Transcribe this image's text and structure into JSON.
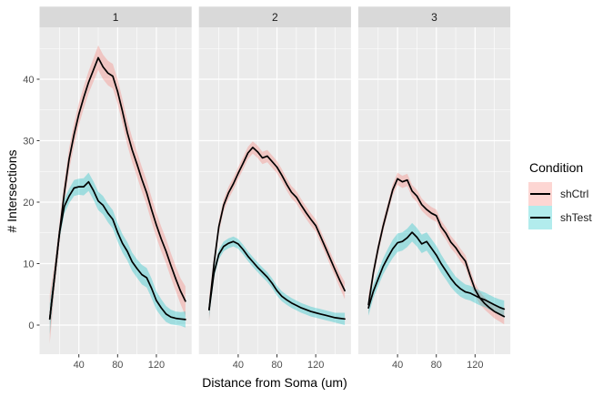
{
  "figure": {
    "bg": "#FFFFFF",
    "panel_bg": "#EBEBEB",
    "strip_bg": "#D9D9D9",
    "strip_text_color": "#1A1A1A",
    "grid_color": "#FFFFFF",
    "tick_mark_color": "#333333",
    "tick_label_color": "#4D4D4D",
    "axis_title_color": "#000000",
    "line_color": "#000000"
  },
  "chart_data": {
    "type": "line",
    "title": "",
    "xlabel": "Distance from Soma (um)",
    "ylabel": "# Intersections",
    "x_ticks": [
      40,
      80,
      120
    ],
    "x_minor_ticks": [
      20,
      60,
      100,
      140
    ],
    "y_ticks": [
      0,
      10,
      20,
      30,
      40
    ],
    "y_minor_ticks": [
      5,
      15,
      25,
      35,
      45
    ],
    "xlim": [
      -0.5,
      157.5
    ],
    "ylim": [
      -4.7,
      48.3
    ],
    "grid": true,
    "ribbon": "mean ± SEM",
    "legend": {
      "title": "Condition",
      "position": "right",
      "entries": [
        {
          "label": "shCtrl",
          "color": "#F8766D"
        },
        {
          "label": "shTest",
          "color": "#00BFC4"
        }
      ]
    },
    "x": [
      10,
      15,
      20,
      25,
      30,
      35,
      40,
      45,
      50,
      55,
      60,
      65,
      70,
      75,
      80,
      85,
      90,
      95,
      100,
      105,
      110,
      115,
      120,
      125,
      130,
      135,
      140,
      145,
      150
    ],
    "facets": [
      {
        "label": "1",
        "series": [
          {
            "name": "shCtrl",
            "color": "#F8766D",
            "values": [
              1,
              8,
              15,
              21.5,
              27,
              31,
              34.3,
              37,
              39.5,
              41.5,
              43.5,
              42,
              41,
              40.5,
              38,
              34.8,
              31.3,
              28.5,
              26.2,
              23.7,
              21.5,
              18.8,
              16.3,
              14,
              12,
              9.7,
              7.5,
              5.5,
              3.9
            ],
            "se": [
              4,
              2,
              1.8,
              1.8,
              1.8,
              1.8,
              1.8,
              1.8,
              1.8,
              1.9,
              2,
              2,
              2,
              2,
              2,
              2,
              2,
              2,
              2,
              2,
              2,
              2,
              2,
              2,
              2,
              2,
              2,
              2.1,
              2.4
            ]
          },
          {
            "name": "shTest",
            "color": "#00BFC4",
            "values": [
              1,
              8,
              15,
              19.3,
              21,
              22.3,
              22.5,
              22.5,
              23.3,
              21.9,
              20.2,
              19.5,
              18.2,
              17.2,
              15.1,
              13.3,
              12,
              10.3,
              9.2,
              8.2,
              7.7,
              6,
              4,
              2.8,
              1.8,
              1.3,
              1.1,
              1,
              0.9
            ],
            "se": [
              2.5,
              1.3,
              1.2,
              1.2,
              1.2,
              1.3,
              1.3,
              1.4,
              1.5,
              1.5,
              1.5,
              1.5,
              1.5,
              1.5,
              1.5,
              1.5,
              1.5,
              1.5,
              1.5,
              1.6,
              1.6,
              1.6,
              1.5,
              1.4,
              1.3,
              1.2,
              1.1,
              1.1,
              1.3
            ]
          }
        ]
      },
      {
        "label": "2",
        "series": [
          {
            "name": "shCtrl",
            "color": "#F8766D",
            "values": [
              2.5,
              10,
              16,
              19.5,
              21.5,
              23,
              24.7,
              26.3,
              28,
              28.9,
              28.2,
              27.2,
              27.5,
              26.6,
              25.7,
              24.4,
              22.9,
              21.6,
              20.8,
              19.5,
              18.3,
              17.2,
              16.2,
              14.4,
              12.6,
              10.8,
              9,
              7.2,
              5.6
            ],
            "se": [
              2,
              1,
              1,
              1,
              1,
              1,
              1,
              1,
              1,
              1,
              1,
              1,
              1,
              1,
              1,
              1,
              1,
              1,
              1,
              1,
              1,
              1,
              1,
              1,
              1,
              1.1,
              1.1,
              1.2,
              1.4
            ]
          },
          {
            "name": "shTest",
            "color": "#00BFC4",
            "values": [
              2.5,
              8.5,
              11.5,
              12.8,
              13.3,
              13.6,
              13.2,
              12.3,
              11.2,
              10.3,
              9.4,
              8.6,
              7.8,
              6.8,
              5.6,
              4.7,
              4.1,
              3.6,
              3.2,
              2.8,
              2.5,
              2.2,
              2,
              1.8,
              1.6,
              1.4,
              1.2,
              1.1,
              1
            ],
            "se": [
              1.5,
              0.8,
              0.8,
              0.8,
              0.8,
              0.8,
              0.8,
              0.8,
              0.8,
              0.8,
              0.8,
              0.8,
              0.8,
              0.8,
              0.8,
              0.8,
              0.8,
              0.8,
              0.8,
              0.8,
              0.8,
              0.8,
              0.8,
              0.8,
              0.8,
              0.8,
              0.8,
              0.9,
              1
            ]
          }
        ]
      },
      {
        "label": "3",
        "series": [
          {
            "name": "shCtrl",
            "color": "#F8766D",
            "values": [
              3.3,
              8.5,
              12.5,
              16,
              19,
              22,
              23.8,
              23.3,
              23.6,
              21.8,
              21,
              19.6,
              18.8,
              18.2,
              17.8,
              16,
              14.9,
              13.5,
              12.6,
              11.4,
              10.4,
              8,
              5.8,
              4.4,
              3.5,
              2.8,
              2.2,
              1.8,
              1.4
            ],
            "se": [
              1.5,
              0.9,
              0.9,
              0.9,
              0.9,
              0.9,
              1,
              1,
              1,
              1,
              1,
              1,
              1,
              1,
              1,
              1,
              1,
              1,
              1,
              1,
              1,
              1,
              1,
              1,
              1,
              1,
              1.1,
              1.2,
              1.3
            ]
          },
          {
            "name": "shTest",
            "color": "#00BFC4",
            "values": [
              2.8,
              5.5,
              7.5,
              9.5,
              11,
              12.4,
              13.4,
              13.6,
              14.2,
              15.1,
              14.3,
              13.2,
              13.6,
              12.5,
              11.4,
              10,
              8.8,
              7.6,
              6.6,
              5.9,
              5.4,
              5.2,
              4.8,
              4.4,
              4.1,
              3.7,
              3.3,
              2.9,
              2.6
            ],
            "se": [
              1.3,
              1.1,
              1.2,
              1.3,
              1.4,
              1.5,
              1.5,
              1.5,
              1.5,
              1.5,
              1.5,
              1.5,
              1.5,
              1.5,
              1.5,
              1.5,
              1.4,
              1.4,
              1.3,
              1.3,
              1.2,
              1.2,
              1.2,
              1.2,
              1.2,
              1.2,
              1.2,
              1.3,
              1.4
            ]
          }
        ]
      }
    ]
  }
}
